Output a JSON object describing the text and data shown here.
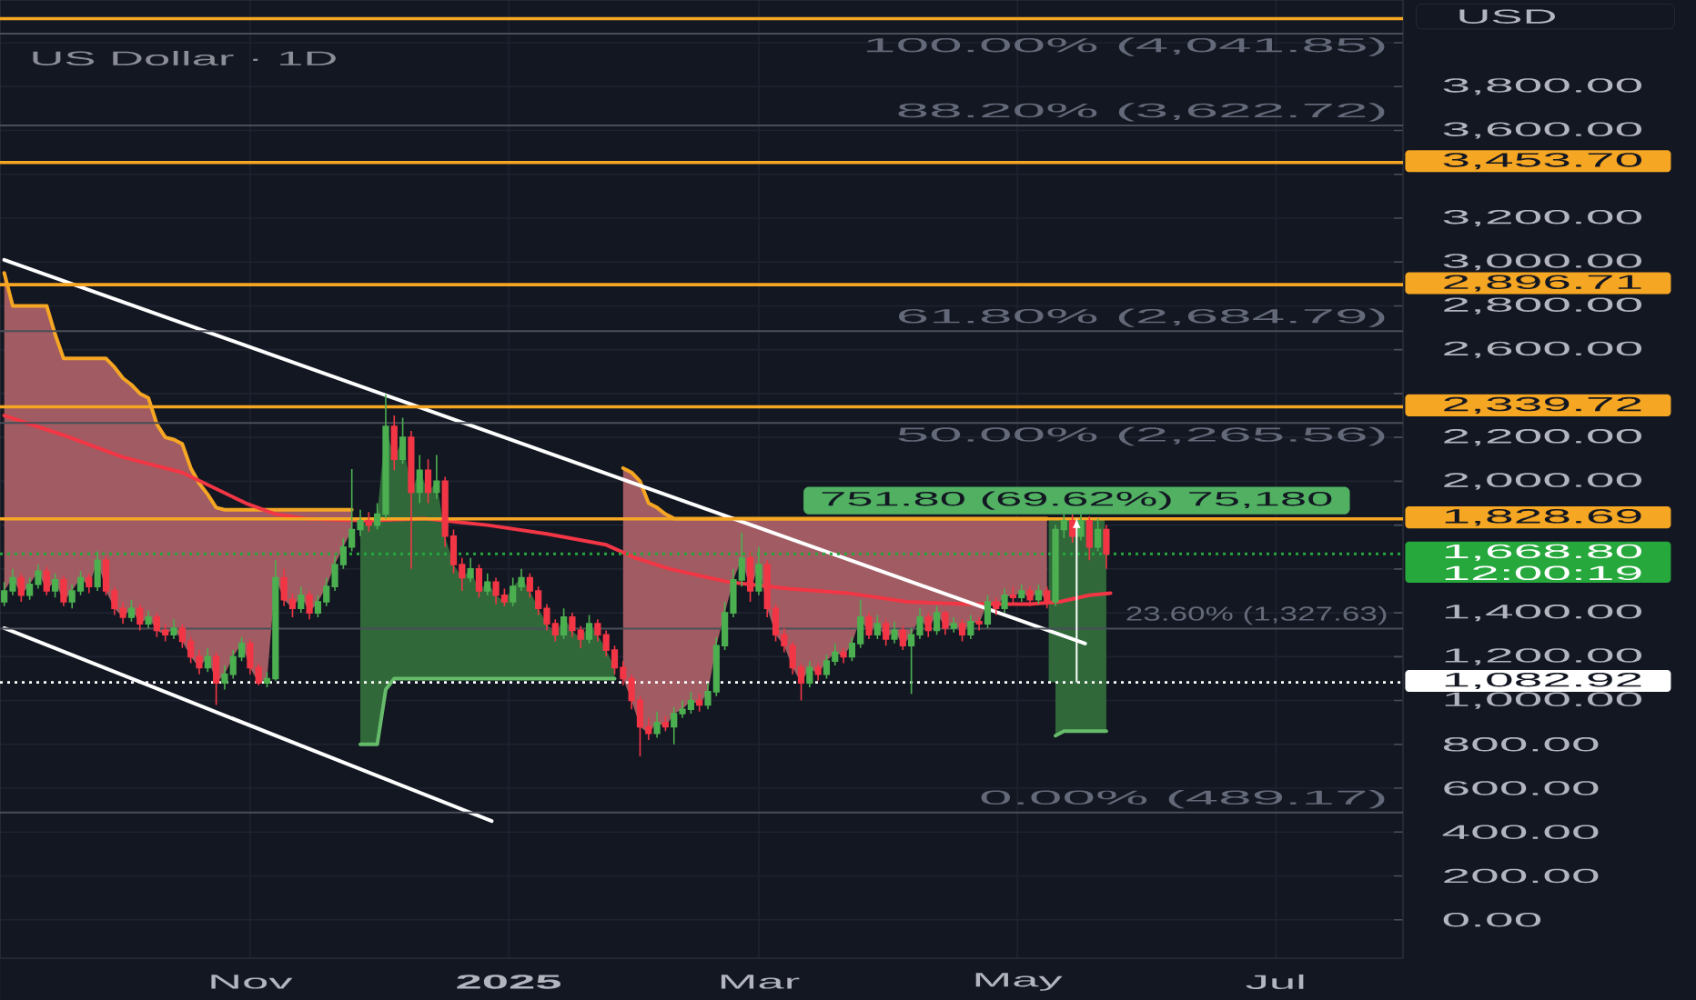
{
  "chart_data": {
    "type": "candlestick",
    "title": "US Dollar · 1D",
    "ylabel": "USD",
    "xlim": [
      "2024-09-03",
      "2025-07-31"
    ],
    "ylim": [
      -175,
      4195
    ],
    "xticks": [
      {
        "value": "2024-11-01",
        "label": "Nov"
      },
      {
        "value": "2025-01-01",
        "label": "2025"
      },
      {
        "value": "2025-03-01",
        "label": "Mar"
      },
      {
        "value": "2025-05-01",
        "label": "May"
      },
      {
        "value": "2025-07-01",
        "label": "Jul"
      }
    ],
    "yticks": [
      {
        "value": 0,
        "label": "0.00"
      },
      {
        "value": 200,
        "label": "200.00"
      },
      {
        "value": 400,
        "label": "400.00"
      },
      {
        "value": 600,
        "label": "600.00"
      },
      {
        "value": 800,
        "label": "800.00"
      },
      {
        "value": 1000,
        "label": "1,000.00"
      },
      {
        "value": 1200,
        "label": "1,200.00"
      },
      {
        "value": 1400,
        "label": "1,400.00"
      },
      {
        "value": 1600,
        "label": null
      },
      {
        "value": 1800,
        "label": null
      },
      {
        "value": 2000,
        "label": "2,000.00"
      },
      {
        "value": 2200,
        "label": "2,200.00"
      },
      {
        "value": 2400,
        "label": null
      },
      {
        "value": 2600,
        "label": "2,600.00"
      },
      {
        "value": 2800,
        "label": "2,800.00"
      },
      {
        "value": 3000,
        "label": "3,000.00"
      },
      {
        "value": 3200,
        "label": "3,200.00"
      },
      {
        "value": 3400,
        "label": null
      },
      {
        "value": 3600,
        "label": "3,600.00"
      },
      {
        "value": 3800,
        "label": "3,800.00"
      },
      {
        "value": 4000,
        "label": null
      }
    ],
    "grid": true,
    "x": [
      "2024-09-04",
      "2024-09-06",
      "2024-09-08",
      "2024-09-10",
      "2024-09-12",
      "2024-09-14",
      "2024-09-16",
      "2024-09-18",
      "2024-09-20",
      "2024-09-22",
      "2024-09-24",
      "2024-09-26",
      "2024-09-28",
      "2024-09-30",
      "2024-10-02",
      "2024-10-04",
      "2024-10-06",
      "2024-10-08",
      "2024-10-10",
      "2024-10-12",
      "2024-10-14",
      "2024-10-16",
      "2024-10-18",
      "2024-10-20",
      "2024-10-22",
      "2024-10-24",
      "2024-10-26",
      "2024-10-28",
      "2024-10-30",
      "2024-11-01",
      "2024-11-03",
      "2024-11-05",
      "2024-11-07",
      "2024-11-09",
      "2024-11-11",
      "2024-11-13",
      "2024-11-15",
      "2024-11-17",
      "2024-11-19",
      "2024-11-21",
      "2024-11-23",
      "2024-11-25",
      "2024-11-27",
      "2024-11-29",
      "2024-12-01",
      "2024-12-03",
      "2024-12-05",
      "2024-12-07",
      "2024-12-09",
      "2024-12-11",
      "2024-12-13",
      "2024-12-15",
      "2024-12-17",
      "2024-12-19",
      "2024-12-21",
      "2024-12-23",
      "2024-12-25",
      "2024-12-27",
      "2024-12-29",
      "2024-12-31",
      "2025-01-02",
      "2025-01-04",
      "2025-01-06",
      "2025-01-08",
      "2025-01-10",
      "2025-01-12",
      "2025-01-14",
      "2025-01-16",
      "2025-01-18",
      "2025-01-20",
      "2025-01-22",
      "2025-01-24",
      "2025-01-26",
      "2025-01-28",
      "2025-01-30",
      "2025-02-01",
      "2025-02-03",
      "2025-02-05",
      "2025-02-07",
      "2025-02-09",
      "2025-02-11",
      "2025-02-13",
      "2025-02-15",
      "2025-02-17",
      "2025-02-19",
      "2025-02-21",
      "2025-02-23",
      "2025-02-25",
      "2025-02-27",
      "2025-03-01",
      "2025-03-03",
      "2025-03-05",
      "2025-03-07",
      "2025-03-09",
      "2025-03-11",
      "2025-03-13",
      "2025-03-15",
      "2025-03-17",
      "2025-03-19",
      "2025-03-21",
      "2025-03-23",
      "2025-03-25",
      "2025-03-27",
      "2025-03-29",
      "2025-03-31",
      "2025-04-02",
      "2025-04-04",
      "2025-04-06",
      "2025-04-08",
      "2025-04-10",
      "2025-04-12",
      "2025-04-14",
      "2025-04-16",
      "2025-04-18",
      "2025-04-20",
      "2025-04-22",
      "2025-04-24",
      "2025-04-26",
      "2025-04-28",
      "2025-04-30",
      "2025-05-02",
      "2025-05-04",
      "2025-05-06",
      "2025-05-08",
      "2025-05-10",
      "2025-05-12",
      "2025-05-14",
      "2025-05-16",
      "2025-05-18",
      "2025-05-20",
      "2025-05-22"
    ],
    "ohlc": [
      [
        1450,
        1540,
        1430,
        1500
      ],
      [
        1500,
        1600,
        1480,
        1560
      ],
      [
        1560,
        1580,
        1450,
        1480
      ],
      [
        1480,
        1560,
        1460,
        1530
      ],
      [
        1530,
        1620,
        1510,
        1590
      ],
      [
        1590,
        1610,
        1480,
        1500
      ],
      [
        1500,
        1580,
        1470,
        1550
      ],
      [
        1550,
        1570,
        1430,
        1450
      ],
      [
        1450,
        1530,
        1420,
        1500
      ],
      [
        1500,
        1590,
        1480,
        1560
      ],
      [
        1560,
        1580,
        1490,
        1520
      ],
      [
        1520,
        1680,
        1500,
        1640
      ],
      [
        1640,
        1660,
        1480,
        1500
      ],
      [
        1500,
        1520,
        1390,
        1420
      ],
      [
        1420,
        1450,
        1350,
        1380
      ],
      [
        1380,
        1460,
        1360,
        1420
      ],
      [
        1420,
        1440,
        1320,
        1350
      ],
      [
        1350,
        1410,
        1330,
        1380
      ],
      [
        1380,
        1400,
        1290,
        1320
      ],
      [
        1320,
        1350,
        1270,
        1300
      ],
      [
        1300,
        1370,
        1280,
        1330
      ],
      [
        1330,
        1350,
        1240,
        1270
      ],
      [
        1270,
        1290,
        1170,
        1200
      ],
      [
        1200,
        1230,
        1120,
        1150
      ],
      [
        1150,
        1240,
        1130,
        1200
      ],
      [
        1200,
        1220,
        980,
        1080
      ],
      [
        1080,
        1160,
        1050,
        1120
      ],
      [
        1120,
        1230,
        1100,
        1200
      ],
      [
        1200,
        1290,
        1180,
        1260
      ],
      [
        1260,
        1280,
        1120,
        1150
      ],
      [
        1150,
        1170,
        1070,
        1080
      ],
      [
        1080,
        1130,
        1060,
        1100
      ],
      [
        1100,
        1640,
        1090,
        1560
      ],
      [
        1560,
        1600,
        1430,
        1460
      ],
      [
        1460,
        1490,
        1380,
        1420
      ],
      [
        1420,
        1520,
        1400,
        1480
      ],
      [
        1480,
        1500,
        1370,
        1400
      ],
      [
        1400,
        1480,
        1380,
        1450
      ],
      [
        1450,
        1560,
        1430,
        1520
      ],
      [
        1520,
        1660,
        1500,
        1620
      ],
      [
        1620,
        1740,
        1600,
        1700
      ],
      [
        1700,
        2055,
        1680,
        1780
      ],
      [
        1780,
        1870,
        1750,
        1820
      ],
      [
        1820,
        1860,
        1770,
        1800
      ],
      [
        1800,
        1900,
        1780,
        1850
      ],
      [
        1850,
        2395,
        1830,
        2250
      ],
      [
        2250,
        2300,
        2050,
        2100
      ],
      [
        2100,
        2290,
        2080,
        2200
      ],
      [
        2200,
        2230,
        1600,
        1950
      ],
      [
        1950,
        2120,
        1900,
        2050
      ],
      [
        2050,
        2100,
        1900,
        1950
      ],
      [
        1950,
        2120,
        1920,
        2000
      ],
      [
        2000,
        2020,
        1700,
        1750
      ],
      [
        1750,
        1780,
        1580,
        1620
      ],
      [
        1620,
        1650,
        1500,
        1560
      ],
      [
        1560,
        1650,
        1540,
        1600
      ],
      [
        1600,
        1620,
        1470,
        1500
      ],
      [
        1500,
        1580,
        1480,
        1540
      ],
      [
        1540,
        1560,
        1440,
        1480
      ],
      [
        1480,
        1510,
        1430,
        1450
      ],
      [
        1450,
        1560,
        1430,
        1520
      ],
      [
        1520,
        1600,
        1500,
        1560
      ],
      [
        1560,
        1580,
        1470,
        1500
      ],
      [
        1500,
        1520,
        1390,
        1420
      ],
      [
        1420,
        1440,
        1320,
        1350
      ],
      [
        1350,
        1370,
        1270,
        1300
      ],
      [
        1300,
        1420,
        1280,
        1380
      ],
      [
        1380,
        1400,
        1290,
        1320
      ],
      [
        1320,
        1340,
        1240,
        1280
      ],
      [
        1280,
        1390,
        1260,
        1350
      ],
      [
        1350,
        1370,
        1270,
        1300
      ],
      [
        1300,
        1320,
        1200,
        1230
      ],
      [
        1230,
        1250,
        1120,
        1150
      ],
      [
        1150,
        1180,
        1070,
        1100
      ],
      [
        1100,
        1120,
        960,
        1000
      ],
      [
        1000,
        1020,
        745,
        880
      ],
      [
        880,
        920,
        820,
        850
      ],
      [
        850,
        950,
        830,
        900
      ],
      [
        900,
        930,
        860,
        880
      ],
      [
        880,
        970,
        800,
        940
      ],
      [
        940,
        1000,
        920,
        960
      ],
      [
        960,
        1040,
        940,
        1000
      ],
      [
        1000,
        1030,
        950,
        980
      ],
      [
        980,
        1080,
        960,
        1040
      ],
      [
        1040,
        1290,
        1020,
        1250
      ],
      [
        1250,
        1450,
        1230,
        1400
      ],
      [
        1400,
        1600,
        1380,
        1550
      ],
      [
        1550,
        1765,
        1520,
        1650
      ],
      [
        1650,
        1680,
        1450,
        1500
      ],
      [
        1500,
        1700,
        1480,
        1620
      ],
      [
        1620,
        1640,
        1380,
        1420
      ],
      [
        1420,
        1440,
        1270,
        1300
      ],
      [
        1300,
        1330,
        1220,
        1250
      ],
      [
        1250,
        1270,
        1120,
        1150
      ],
      [
        1150,
        1170,
        1000,
        1080
      ],
      [
        1080,
        1180,
        1060,
        1150
      ],
      [
        1150,
        1170,
        1090,
        1120
      ],
      [
        1120,
        1210,
        1100,
        1180
      ],
      [
        1180,
        1260,
        1160,
        1220
      ],
      [
        1220,
        1240,
        1170,
        1200
      ],
      [
        1200,
        1290,
        1180,
        1260
      ],
      [
        1260,
        1460,
        1240,
        1380
      ],
      [
        1380,
        1400,
        1280,
        1300
      ],
      [
        1300,
        1390,
        1280,
        1350
      ],
      [
        1350,
        1370,
        1250,
        1280
      ],
      [
        1280,
        1360,
        1260,
        1320
      ],
      [
        1320,
        1340,
        1230,
        1250
      ],
      [
        1250,
        1330,
        1030,
        1300
      ],
      [
        1300,
        1420,
        1280,
        1380
      ],
      [
        1380,
        1400,
        1290,
        1320
      ],
      [
        1320,
        1430,
        1300,
        1400
      ],
      [
        1400,
        1410,
        1300,
        1330
      ],
      [
        1330,
        1380,
        1310,
        1350
      ],
      [
        1350,
        1370,
        1270,
        1300
      ],
      [
        1300,
        1390,
        1280,
        1360
      ],
      [
        1360,
        1380,
        1320,
        1350
      ],
      [
        1350,
        1480,
        1330,
        1450
      ],
      [
        1450,
        1470,
        1390,
        1420
      ],
      [
        1420,
        1510,
        1400,
        1480
      ],
      [
        1480,
        1520,
        1440,
        1470
      ],
      [
        1470,
        1530,
        1450,
        1500
      ],
      [
        1500,
        1520,
        1430,
        1460
      ],
      [
        1460,
        1530,
        1440,
        1500
      ],
      [
        1500,
        1520,
        1420,
        1450
      ],
      [
        1450,
        1800,
        1430,
        1780
      ],
      [
        1780,
        1850,
        1740,
        1820
      ],
      [
        1820,
        1850,
        1720,
        1750
      ],
      [
        1750,
        1850,
        1730,
        1820
      ],
      [
        1820,
        1840,
        1640,
        1700
      ],
      [
        1700,
        1830,
        1680,
        1780
      ],
      [
        1780,
        1800,
        1600,
        1668.8
      ]
    ],
    "colors": [
      "#4caf50",
      "#4caf50",
      "#f23645",
      "#4caf50",
      "#4caf50",
      "#f23645",
      "#4caf50",
      "#f23645",
      "#4caf50",
      "#4caf50",
      "#f23645",
      "#4caf50",
      "#f23645",
      "#f23645",
      "#f23645",
      "#4caf50",
      "#f23645",
      "#4caf50",
      "#f23645",
      "#f23645",
      "#4caf50",
      "#f23645",
      "#f23645",
      "#f23645",
      "#4caf50",
      "#f23645",
      "#4caf50",
      "#4caf50",
      "#4caf50",
      "#f23645",
      "#f23645",
      "#4caf50",
      "#4caf50",
      "#f23645",
      "#f23645",
      "#4caf50",
      "#f23645",
      "#4caf50",
      "#4caf50",
      "#4caf50",
      "#4caf50",
      "#4caf50",
      "#4caf50",
      "#f23645",
      "#4caf50",
      "#4caf50",
      "#f23645",
      "#4caf50",
      "#f23645",
      "#4caf50",
      "#f23645",
      "#4caf50",
      "#f23645",
      "#f23645",
      "#f23645",
      "#4caf50",
      "#f23645",
      "#4caf50",
      "#f23645",
      "#f23645",
      "#4caf50",
      "#4caf50",
      "#f23645",
      "#f23645",
      "#f23645",
      "#f23645",
      "#4caf50",
      "#f23645",
      "#f23645",
      "#4caf50",
      "#f23645",
      "#f23645",
      "#f23645",
      "#f23645",
      "#f23645",
      "#f23645",
      "#f23645",
      "#4caf50",
      "#f23645",
      "#4caf50",
      "#4caf50",
      "#4caf50",
      "#f23645",
      "#4caf50",
      "#4caf50",
      "#4caf50",
      "#4caf50",
      "#4caf50",
      "#f23645",
      "#4caf50",
      "#f23645",
      "#f23645",
      "#f23645",
      "#f23645",
      "#f23645",
      "#4caf50",
      "#f23645",
      "#4caf50",
      "#4caf50",
      "#f23645",
      "#4caf50",
      "#4caf50",
      "#f23645",
      "#4caf50",
      "#f23645",
      "#4caf50",
      "#f23645",
      "#4caf50",
      "#4caf50",
      "#f23645",
      "#4caf50",
      "#f23645",
      "#4caf50",
      "#f23645",
      "#4caf50",
      "#f23645",
      "#4caf50",
      "#f23645",
      "#4caf50",
      "#f23645",
      "#4caf50",
      "#f23645",
      "#4caf50",
      "#f23645",
      "#4caf50",
      "#4caf50",
      "#f23645",
      "#4caf50",
      "#f23645",
      "#4caf50",
      "#f23645"
    ],
    "series": [
      {
        "type": "bar",
        "color": "#30683a",
        "x": [
          "2025-05-15"
        ],
        "base": [
          1082.92
        ],
        "values": [
          751.8
        ],
        "value_labels": [
          "751.80 (69.62%) 75,180"
        ]
      },
      {
        "type": "line",
        "color": "#f5a623",
        "x": [
          "2024-09-04",
          "2024-09-06",
          "2024-09-08",
          "2024-09-10",
          "2024-09-12",
          "2024-09-14",
          "2024-09-16",
          "2024-09-18",
          "2024-09-20",
          "2024-09-22",
          "2024-09-24",
          "2024-09-26",
          "2024-09-28",
          "2024-09-30",
          "2024-10-02",
          "2024-10-04",
          "2024-10-06",
          "2024-10-08",
          "2024-10-10",
          "2024-10-12",
          "2024-10-14",
          "2024-10-16",
          "2024-10-18",
          "2024-10-20",
          "2024-10-22",
          "2024-10-24",
          "2024-10-26",
          "2024-10-28",
          "2024-10-30",
          "2024-11-01",
          "2024-11-03",
          "2024-11-05",
          "2024-11-07",
          "2024-11-09",
          "2024-11-11",
          "2024-11-13",
          "2024-11-15",
          "2024-11-17",
          "2024-11-19",
          "2024-11-21",
          "2024-11-23",
          "2024-11-25"
        ],
        "values": [
          2950,
          2800,
          2800,
          2800,
          2800,
          2800,
          2670,
          2560,
          2560,
          2560,
          2560,
          2560,
          2560,
          2520,
          2470,
          2440,
          2400,
          2380,
          2260,
          2200,
          2190,
          2170,
          2060,
          1990,
          1940,
          1880,
          1870,
          1870,
          1870,
          1870,
          1870,
          1870,
          1870,
          1870,
          1870,
          1870,
          1870,
          1870,
          1870,
          1870,
          1870,
          1870
        ],
        "upper": [
          2950,
          2800,
          2800,
          2800,
          2800,
          2800,
          2670,
          2560,
          2560,
          2560,
          2560,
          2560,
          2560,
          2520,
          2470,
          2440,
          2400,
          2380,
          2260,
          2200,
          2190,
          2170,
          2060,
          1990,
          1940,
          1880,
          1870,
          1870,
          1870,
          1870,
          1870,
          1870,
          1870,
          1870,
          1870,
          1870,
          1870,
          1870,
          1870,
          1870,
          1870,
          1870
        ],
        "lower": [
          1500,
          1560,
          1480,
          1530,
          1590,
          1500,
          1550,
          1450,
          1500,
          1560,
          1520,
          1640,
          1500,
          1420,
          1380,
          1420,
          1350,
          1380,
          1320,
          1300,
          1330,
          1270,
          1200,
          1150,
          1200,
          1080,
          1120,
          1200,
          1260,
          1150,
          1080,
          1100,
          1560,
          1460,
          1420,
          1480,
          1400,
          1450,
          1520,
          1620,
          1700,
          1780
        ]
      },
      {
        "type": "line",
        "color": "#66bb6a",
        "x": [
          "2024-11-27",
          "2024-11-29",
          "2024-12-01",
          "2024-12-03",
          "2024-12-05",
          "2024-12-07",
          "2024-12-09",
          "2024-12-11",
          "2024-12-13",
          "2024-12-15",
          "2024-12-17",
          "2024-12-19",
          "2024-12-21",
          "2024-12-23",
          "2024-12-25",
          "2024-12-27",
          "2024-12-29",
          "2024-12-31",
          "2025-01-02",
          "2025-01-04",
          "2025-01-06",
          "2025-01-08",
          "2025-01-10",
          "2025-01-12",
          "2025-01-14",
          "2025-01-16",
          "2025-01-18",
          "2025-01-20",
          "2025-01-22",
          "2025-01-24",
          "2025-01-26"
        ],
        "values": [
          800,
          800,
          800,
          1050,
          1100,
          1100,
          1100,
          1100,
          1100,
          1100,
          1100,
          1100,
          1100,
          1100,
          1100,
          1100,
          1100,
          1100,
          1100,
          1100,
          1100,
          1100,
          1100,
          1100,
          1100,
          1100,
          1100,
          1100,
          1100,
          1100,
          1100
        ],
        "lower": [
          800,
          800,
          800,
          1050,
          1100,
          1100,
          1100,
          1100,
          1100,
          1100,
          1100,
          1100,
          1100,
          1100,
          1100,
          1100,
          1100,
          1100,
          1100,
          1100,
          1100,
          1100,
          1100,
          1100,
          1100,
          1100,
          1100,
          1100,
          1100,
          1100,
          1100
        ],
        "upper": [
          1820,
          1800,
          1850,
          2250,
          2100,
          2200,
          1950,
          2050,
          1950,
          2000,
          1750,
          1620,
          1560,
          1600,
          1500,
          1540,
          1480,
          1450,
          1520,
          1560,
          1500,
          1420,
          1350,
          1300,
          1380,
          1320,
          1280,
          1350,
          1300,
          1230,
          1150
        ]
      },
      {
        "type": "line",
        "color": "#f5a623",
        "x": [
          "2025-01-28",
          "2025-01-30",
          "2025-02-01",
          "2025-02-03",
          "2025-02-05",
          "2025-02-07",
          "2025-02-09",
          "2025-02-11",
          "2025-02-13",
          "2025-02-15",
          "2025-02-17",
          "2025-02-19",
          "2025-02-21",
          "2025-02-23",
          "2025-02-25",
          "2025-02-27",
          "2025-03-01",
          "2025-03-03",
          "2025-03-05",
          "2025-03-07",
          "2025-03-09",
          "2025-03-11",
          "2025-03-13",
          "2025-03-15",
          "2025-03-17",
          "2025-03-19",
          "2025-03-21",
          "2025-03-23",
          "2025-03-25",
          "2025-03-27",
          "2025-03-29",
          "2025-03-31",
          "2025-04-02",
          "2025-04-04",
          "2025-04-06",
          "2025-04-08",
          "2025-04-10",
          "2025-04-12",
          "2025-04-14",
          "2025-04-16",
          "2025-04-18",
          "2025-04-20",
          "2025-04-22",
          "2025-04-24",
          "2025-04-26",
          "2025-04-28",
          "2025-04-30",
          "2025-05-02",
          "2025-05-04",
          "2025-05-06",
          "2025-05-08"
        ],
        "values": [
          2060,
          2040,
          2000,
          1900,
          1880,
          1850,
          1830,
          1830,
          1830,
          1830,
          1830,
          1830,
          1830,
          1830,
          1830,
          1830,
          1830,
          1830,
          1830,
          1830,
          1830,
          1830,
          1830,
          1830,
          1830,
          1830,
          1830,
          1830,
          1830,
          1830,
          1830,
          1830,
          1830,
          1830,
          1830,
          1830,
          1830,
          1830,
          1830,
          1830,
          1830,
          1830,
          1830,
          1830,
          1830,
          1830,
          1830,
          1830,
          1830,
          1830,
          1830
        ],
        "upper": [
          2060,
          2040,
          2000,
          1900,
          1880,
          1850,
          1830,
          1830,
          1830,
          1830,
          1830,
          1830,
          1830,
          1830,
          1830,
          1830,
          1830,
          1830,
          1830,
          1830,
          1830,
          1830,
          1830,
          1830,
          1830,
          1830,
          1830,
          1830,
          1830,
          1830,
          1830,
          1830,
          1830,
          1830,
          1830,
          1830,
          1830,
          1830,
          1830,
          1830,
          1830,
          1830,
          1830,
          1830,
          1830,
          1830,
          1830,
          1830,
          1830,
          1830,
          1830
        ],
        "lower": [
          1100,
          1000,
          880,
          850,
          900,
          880,
          940,
          960,
          1000,
          980,
          1040,
          1250,
          1400,
          1550,
          1650,
          1500,
          1620,
          1420,
          1300,
          1250,
          1150,
          1080,
          1150,
          1120,
          1180,
          1220,
          1200,
          1260,
          1380,
          1300,
          1350,
          1280,
          1320,
          1250,
          1300,
          1380,
          1320,
          1400,
          1330,
          1350,
          1300,
          1360,
          1350,
          1450,
          1420,
          1480,
          1470,
          1500,
          1460,
          1500,
          1450
        ]
      },
      {
        "type": "line",
        "color": "#66bb6a",
        "x": [
          "2025-05-10",
          "2025-05-12",
          "2025-05-14",
          "2025-05-16",
          "2025-05-18",
          "2025-05-20",
          "2025-05-22"
        ],
        "values": [
          840,
          860,
          860,
          860,
          860,
          860,
          860
        ],
        "lower": [
          840,
          860,
          860,
          860,
          860,
          860,
          860
        ],
        "upper": [
          1780,
          1820,
          1750,
          1820,
          1700,
          1780,
          1670
        ]
      },
      {
        "type": "line",
        "color": "#f23645",
        "x": [
          "2024-09-04",
          "2024-09-18",
          "2024-10-02",
          "2024-10-16",
          "2024-10-31",
          "2024-11-07",
          "2024-11-14",
          "2024-11-28",
          "2024-12-12",
          "2024-12-27",
          "2025-01-10",
          "2025-01-24",
          "2025-01-31",
          "2025-02-08",
          "2025-02-22",
          "2025-03-08",
          "2025-03-22",
          "2025-04-05",
          "2025-04-19",
          "2025-05-04",
          "2025-05-11",
          "2025-05-18",
          "2025-05-23"
        ],
        "values": [
          2300,
          2210,
          2110,
          2040,
          1900,
          1850,
          1830,
          1820,
          1830,
          1800,
          1760,
          1710,
          1650,
          1600,
          1540,
          1510,
          1490,
          1450,
          1440,
          1440,
          1450,
          1480,
          1490
        ]
      },
      {
        "type": "line",
        "color": "#ffffff",
        "x": [
          "2024-09-04",
          "2025-05-17"
        ],
        "values": [
          3010,
          1260
        ]
      },
      {
        "type": "line",
        "color": "#ffffff",
        "x": [
          "2024-09-04",
          "2024-12-28"
        ],
        "values": [
          1330,
          450
        ]
      }
    ],
    "ref_lines": [
      {
        "axis": "y",
        "value": 4110,
        "color": "#f5a623"
      },
      {
        "axis": "y",
        "value": 4041.85,
        "label": "100.00% (4,041.85)",
        "color": "#4a4e59"
      },
      {
        "axis": "y",
        "value": 3622.72,
        "label": "88.20% (3,622.72)",
        "color": "#4a4e59"
      },
      {
        "axis": "y",
        "value": 3453.7,
        "label": "3,453.70",
        "color": "#f5a623"
      },
      {
        "axis": "y",
        "value": 2896.71,
        "label": "2,896.71",
        "color": "#f5a623"
      },
      {
        "axis": "y",
        "value": 2684.79,
        "label": "61.80% (2,684.79)",
        "color": "#4a4e59"
      },
      {
        "axis": "y",
        "value": 2339.72,
        "label": "2,339.72",
        "color": "#f5a623"
      },
      {
        "axis": "y",
        "value": 2265.56,
        "label": "50.00% (2,265.56)",
        "color": "#4a4e59"
      },
      {
        "axis": "y",
        "value": 1828.69,
        "label": "1,828.69",
        "color": "#f5a623"
      },
      {
        "axis": "y",
        "value": 1668.8,
        "label": "1,668.80",
        "color": "#26a83c",
        "line_style": "dotted"
      },
      {
        "axis": "y",
        "value": 1327.63,
        "label": "23.60% (1,327.63)",
        "color": "#4a4e59"
      },
      {
        "axis": "y",
        "value": 1082.92,
        "label": "1,082.92",
        "color": "#ffffff",
        "line_style": "dotted"
      },
      {
        "axis": "y",
        "value": 489.17,
        "label": "0.00% (489.17)",
        "color": "#4a4e59"
      }
    ],
    "annotations": [
      "12:00:19"
    ]
  }
}
